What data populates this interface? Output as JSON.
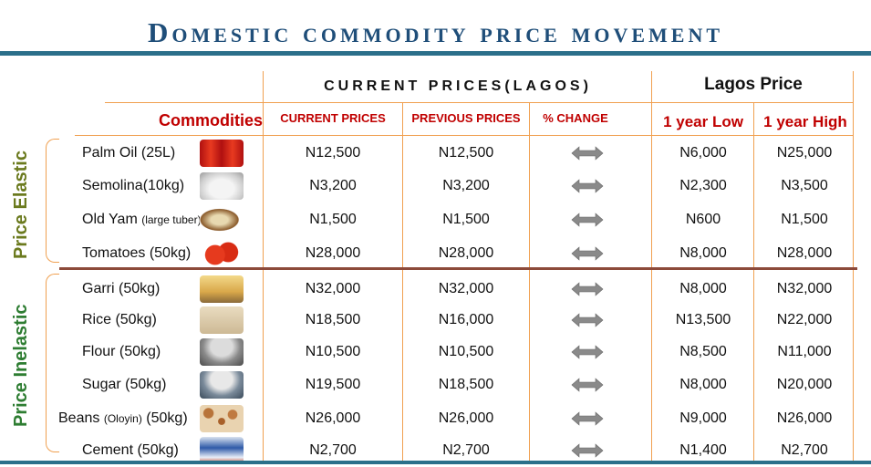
{
  "title": "Domestic commodity price movement",
  "headers": {
    "current_group": "CURRENT PRICES(LAGOS)",
    "lagos_group": "Lagos Price",
    "commodities": "Commodities",
    "current": "CURRENT PRICES",
    "previous": "PREVIOUS PRICES",
    "change": "% CHANGE",
    "low": "1 year Low",
    "high": "1 year High"
  },
  "groups": {
    "elastic": "Price Elastic",
    "inelastic": "Price Inelastic"
  },
  "colors": {
    "title": "#1f4e79",
    "header_red": "#c00000",
    "group_elastic": "#6b7a1e",
    "group_inelastic": "#2e7d32",
    "grid": "#f0a050"
  },
  "rows": [
    {
      "name": "Palm Oil (25L)",
      "note": "",
      "current": "N12,500",
      "previous": "N12,500",
      "change_icon": "double-arrow-icon",
      "low": "N6,000",
      "high": "N25,000",
      "img": "palm-oil-image"
    },
    {
      "name": "Semolina(10kg)",
      "note": "",
      "current": "N3,200",
      "previous": "N3,200",
      "change_icon": "double-arrow-icon",
      "low": "N2,300",
      "high": "N3,500",
      "img": "semolina-image"
    },
    {
      "name": "Old Yam",
      "note": "(large tuber)",
      "current": "N1,500",
      "previous": "N1,500",
      "change_icon": "double-arrow-icon",
      "low": "N600",
      "high": "N1,500",
      "img": "yam-image"
    },
    {
      "name": "Tomatoes (50kg)",
      "note": "",
      "current": "N28,000",
      "previous": "N28,000",
      "change_icon": "double-arrow-icon",
      "low": "N8,000",
      "high": "N28,000",
      "img": "tomatoes-image"
    },
    {
      "name": "Garri (50kg)",
      "note": "",
      "current": "N32,000",
      "previous": "N32,000",
      "change_icon": "double-arrow-icon",
      "low": "N8,000",
      "high": "N32,000",
      "img": "garri-image"
    },
    {
      "name": "Rice (50kg)",
      "note": "",
      "current": "N18,500",
      "previous": "N16,000",
      "change_icon": "double-arrow-icon",
      "low": "N13,500",
      "high": "N22,000",
      "img": "rice-bag-image"
    },
    {
      "name": "Flour (50kg)",
      "note": "",
      "current": "N10,500",
      "previous": "N10,500",
      "change_icon": "double-arrow-icon",
      "low": "N8,500",
      "high": "N11,000",
      "img": "flour-image"
    },
    {
      "name": "Sugar (50kg)",
      "note": "",
      "current": "N19,500",
      "previous": "N18,500",
      "change_icon": "double-arrow-icon",
      "low": "N8,000",
      "high": "N20,000",
      "img": "sugar-image"
    },
    {
      "name": "Beans",
      "note": "(Oloyin)",
      "name2": " (50kg)",
      "current": "N26,000",
      "previous": "N26,000",
      "change_icon": "double-arrow-icon",
      "low": "N9,000",
      "high": "N26,000",
      "img": "beans-image"
    },
    {
      "name": "Cement (50kg)",
      "note": "",
      "current": "N2,700",
      "previous": "N2,700",
      "change_icon": "double-arrow-icon",
      "low": "N1,400",
      "high": "N2,700",
      "img": "cement-bag-image"
    }
  ]
}
